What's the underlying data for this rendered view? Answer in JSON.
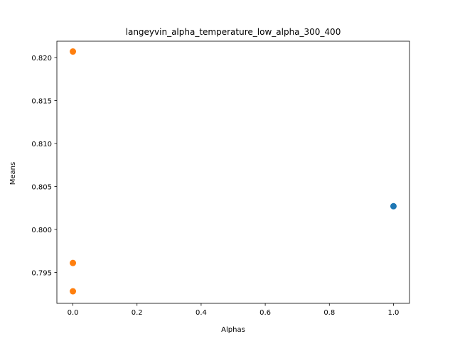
{
  "chart_data": {
    "type": "scatter",
    "title": "langeyvin_alpha_temperature_low_alpha_300_400",
    "xlabel": "Alphas",
    "ylabel": "Means",
    "xlim": [
      -0.05,
      1.05
    ],
    "ylim": [
      0.7914,
      0.8219
    ],
    "xticks": [
      0.0,
      0.2,
      0.4,
      0.6,
      0.8,
      1.0
    ],
    "xtick_labels": [
      "0.0",
      "0.2",
      "0.4",
      "0.6",
      "0.8",
      "1.0"
    ],
    "yticks": [
      0.795,
      0.8,
      0.805,
      0.81,
      0.815,
      0.82
    ],
    "ytick_labels": [
      "0.795",
      "0.800",
      "0.805",
      "0.810",
      "0.815",
      "0.820"
    ],
    "grid": false,
    "series": [
      {
        "color": "#1f77b4",
        "points": [
          {
            "x": 1.0,
            "y": 0.8027
          }
        ]
      },
      {
        "color": "#ff7f0e",
        "points": [
          {
            "x": 0.0,
            "y": 0.8207
          },
          {
            "x": 0.0,
            "y": 0.7961
          },
          {
            "x": 0.0,
            "y": 0.7928
          }
        ]
      }
    ]
  }
}
